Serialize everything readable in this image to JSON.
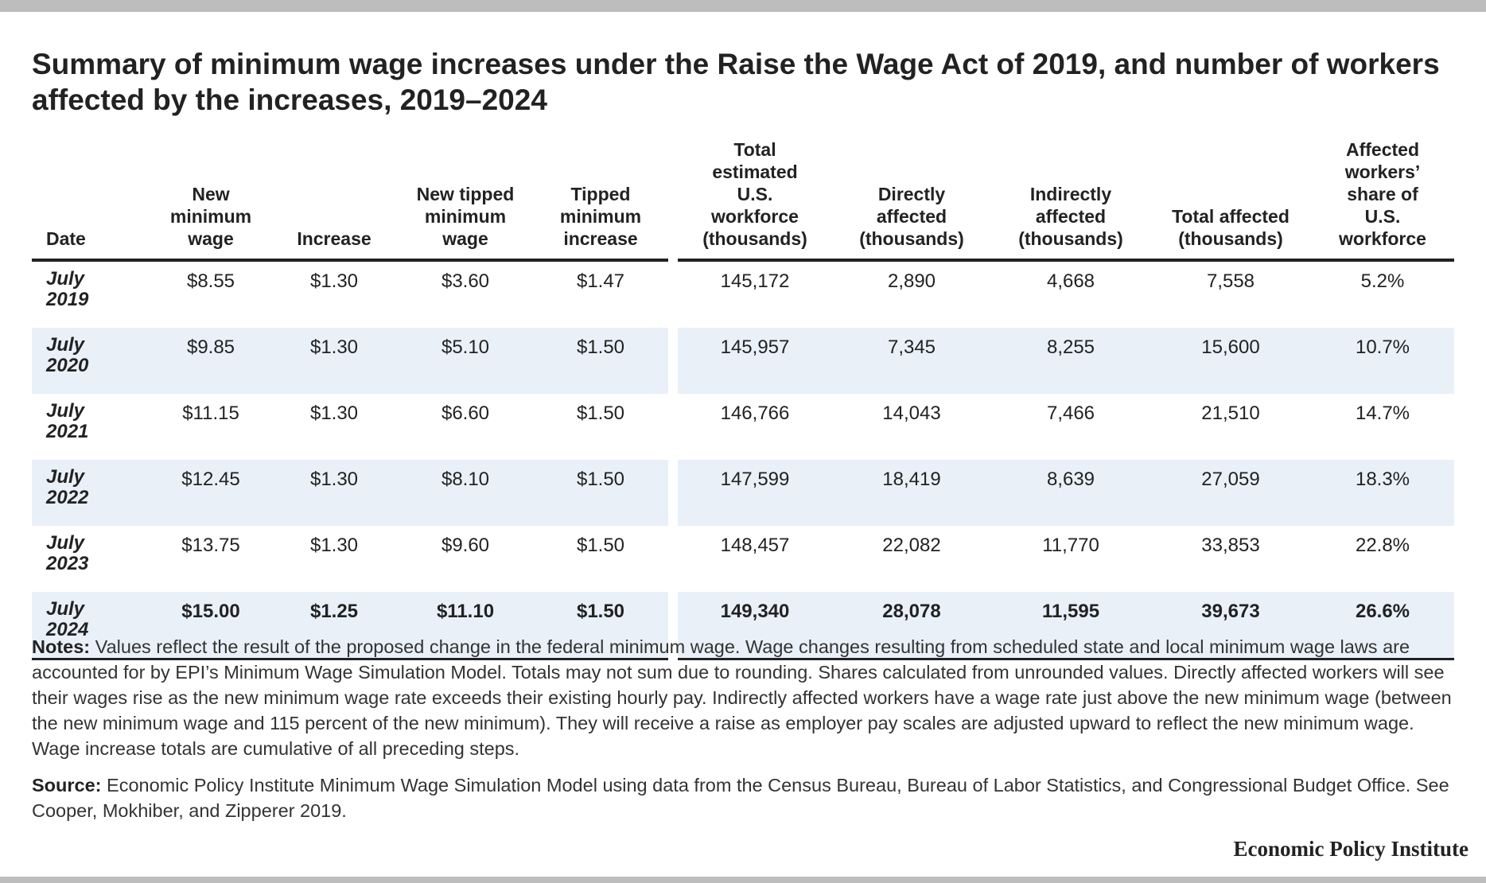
{
  "title": "Summary of minimum wage increases under the Raise the Wage Act of 2019, and number of workers affected by the increases, 2019–2024",
  "chart_data": {
    "type": "table",
    "columns": [
      "Date",
      "New minimum wage",
      "Increase",
      "New tipped minimum wage",
      "Tipped minimum increase",
      "Total estimated U.S. workforce (thousands)",
      "Directly affected (thousands)",
      "Indirectly affected (thousands)",
      "Total affected (thousands)",
      "Affected workers’ share of U.S. workforce"
    ],
    "rows": [
      {
        "date": "July 2019",
        "min_wage": "$8.55",
        "increase": "$1.30",
        "tipped_min": "$3.60",
        "tipped_increase": "$1.47",
        "workforce": "145,172",
        "direct": "2,890",
        "indirect": "4,668",
        "total": "7,558",
        "share": "5.2%"
      },
      {
        "date": "July 2020",
        "min_wage": "$9.85",
        "increase": "$1.30",
        "tipped_min": "$5.10",
        "tipped_increase": "$1.50",
        "workforce": "145,957",
        "direct": "7,345",
        "indirect": "8,255",
        "total": "15,600",
        "share": "10.7%"
      },
      {
        "date": "July 2021",
        "min_wage": "$11.15",
        "increase": "$1.30",
        "tipped_min": "$6.60",
        "tipped_increase": "$1.50",
        "workforce": "146,766",
        "direct": "14,043",
        "indirect": "7,466",
        "total": "21,510",
        "share": "14.7%"
      },
      {
        "date": "July 2022",
        "min_wage": "$12.45",
        "increase": "$1.30",
        "tipped_min": "$8.10",
        "tipped_increase": "$1.50",
        "workforce": "147,599",
        "direct": "18,419",
        "indirect": "8,639",
        "total": "27,059",
        "share": "18.3%"
      },
      {
        "date": "July 2023",
        "min_wage": "$13.75",
        "increase": "$1.30",
        "tipped_min": "$9.60",
        "tipped_increase": "$1.50",
        "workforce": "148,457",
        "direct": "22,082",
        "indirect": "11,770",
        "total": "33,853",
        "share": "22.8%"
      },
      {
        "date": "July 2024",
        "min_wage": "$15.00",
        "increase": "$1.25",
        "tipped_min": "$11.10",
        "tipped_increase": "$1.50",
        "workforce": "149,340",
        "direct": "28,078",
        "indirect": "11,595",
        "total": "39,673",
        "share": "26.6%"
      }
    ],
    "bold_last_row": true
  },
  "notes": {
    "label": "Notes:",
    "text": " Values reflect the result of the proposed change in the federal minimum wage. Wage changes resulting from scheduled state and local minimum wage laws are accounted for by EPI’s Minimum Wage Simulation Model. Totals may not sum due to rounding. Shares calculated from unrounded values. Directly affected workers will see their wages rise as the new minimum wage rate exceeds their existing hourly pay. Indirectly affected workers have a wage rate just above the new minimum wage (between the new minimum wage and 115 percent of the new minimum). They will receive a raise as employer pay scales are adjusted upward to reflect the new minimum wage. Wage increase totals are cumulative of all preceding steps."
  },
  "source": {
    "label": "Source:",
    "text": " Economic Policy Institute Minimum Wage Simulation Model using data from the Census Bureau, Bureau of Labor Statistics, and Congressional Budget Office. See Cooper, Mokhiber, and Zipperer 2019."
  },
  "brand": "Economic Policy Institute",
  "colors": {
    "alt_row": "#e9f0f8",
    "rule": "#222222",
    "frame_bar": "#bdbdbd"
  }
}
